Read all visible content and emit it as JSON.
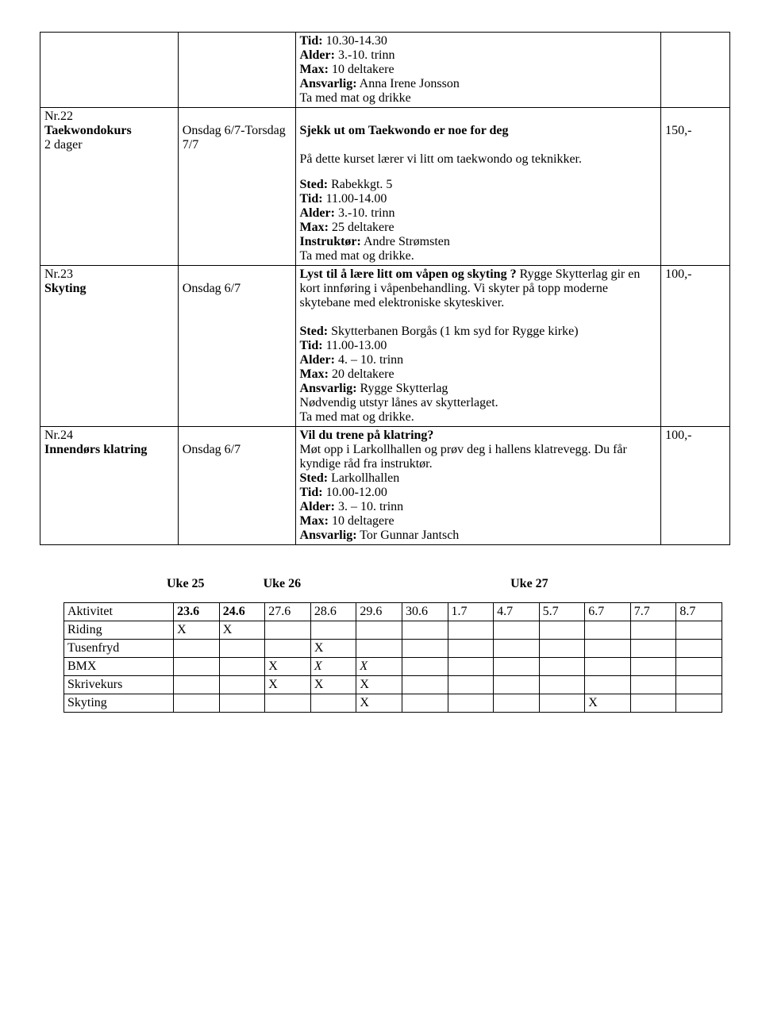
{
  "labels": {
    "tid": "Tid:",
    "alder": "Alder:",
    "max": "Max:",
    "ansvarlig": "Ansvarlig:",
    "sted": "Sted:",
    "instruktor": "Instruktør:"
  },
  "row0": {
    "tid": "10.30-14.30",
    "alder": "3.-10. trinn",
    "max": "10 deltakere",
    "ansvarlig": "Anna Irene Jonsson",
    "note": "Ta med mat og drikke"
  },
  "row22": {
    "id": "Nr.22",
    "title": "Taekwondokurs",
    "sub": "2 dager",
    "date": "Onsdag  6/7-Torsdag 7/7",
    "headline": "Sjekk ut om Taekwondo er noe for deg",
    "intro": "På dette kurset lærer vi litt om taekwondo og teknikker.",
    "sted": "Rabekkgt. 5",
    "tid": "11.00-14.00",
    "alder": "3.-10. trinn",
    "max": "25 deltakere",
    "instruktor": "Andre Strømsten",
    "note": "Ta med mat og drikke.",
    "price": "150,-"
  },
  "row23": {
    "id": "Nr.23",
    "title": "Skyting",
    "date": "Onsdag 6/7",
    "headline": "Lyst til å lære litt om våpen og skyting ?",
    "intro": "Rygge Skytterlag gir en kort innføring i våpenbehandling. Vi skyter på topp moderne skytebane med elektroniske skyteskiver.",
    "sted": "Skytterbanen Borgås (1 km syd for Rygge kirke)",
    "tid": "11.00-13.00",
    "alder": "4. – 10. trinn",
    "max": "20 deltakere",
    "ansvarlig": "Rygge Skytterlag",
    "note1": "Nødvendig utstyr lånes av skytterlaget.",
    "note2": "Ta med mat og drikke.",
    "price": "100,-"
  },
  "row24": {
    "id": "Nr.24",
    "title": "Innendørs klatring",
    "date": "Onsdag 6/7",
    "headline": "Vil du trene på klatring?",
    "intro": "Møt opp i Larkollhallen og prøv deg i hallens klatrevegg. Du får kyndige råd fra instruktør.",
    "sted": "Larkollhallen",
    "tid": "10.00-12.00",
    "alder": "3. – 10. trinn",
    "max": "10 deltagere",
    "ansvarlig": "Tor Gunnar Jantsch",
    "price": "100,-"
  },
  "weeks": {
    "w25": "Uke 25",
    "w26": "Uke 26",
    "w27": "Uke 27"
  },
  "sched": {
    "headers": [
      "Aktivitet",
      "23.6",
      "24.6",
      "27.6",
      "28.6",
      "29.6",
      "30.6",
      "1.7",
      "4.7",
      "5.7",
      "6.7",
      "7.7",
      "8.7"
    ],
    "rows": [
      {
        "name": "Riding",
        "cells": [
          "X",
          "X",
          "",
          "",
          "",
          "",
          "",
          "",
          "",
          "",
          "",
          ""
        ]
      },
      {
        "name": "Tusenfryd",
        "cells": [
          "",
          "",
          "",
          "X",
          "",
          "",
          "",
          "",
          "",
          "",
          "",
          ""
        ]
      },
      {
        "name": "BMX",
        "cells": [
          "",
          "",
          "X",
          "X",
          "X",
          "",
          "",
          "",
          "",
          "",
          "",
          ""
        ],
        "italic": [
          false,
          false,
          false,
          true,
          true,
          false,
          false,
          false,
          false,
          false,
          false,
          false
        ]
      },
      {
        "name": "Skrivekurs",
        "cells": [
          "",
          "",
          "X",
          "X",
          "X",
          "",
          "",
          "",
          "",
          "",
          "",
          ""
        ]
      },
      {
        "name": "Skyting",
        "cells": [
          "",
          "",
          "",
          "",
          "X",
          "",
          "",
          "",
          "",
          "X",
          "",
          ""
        ]
      }
    ]
  }
}
